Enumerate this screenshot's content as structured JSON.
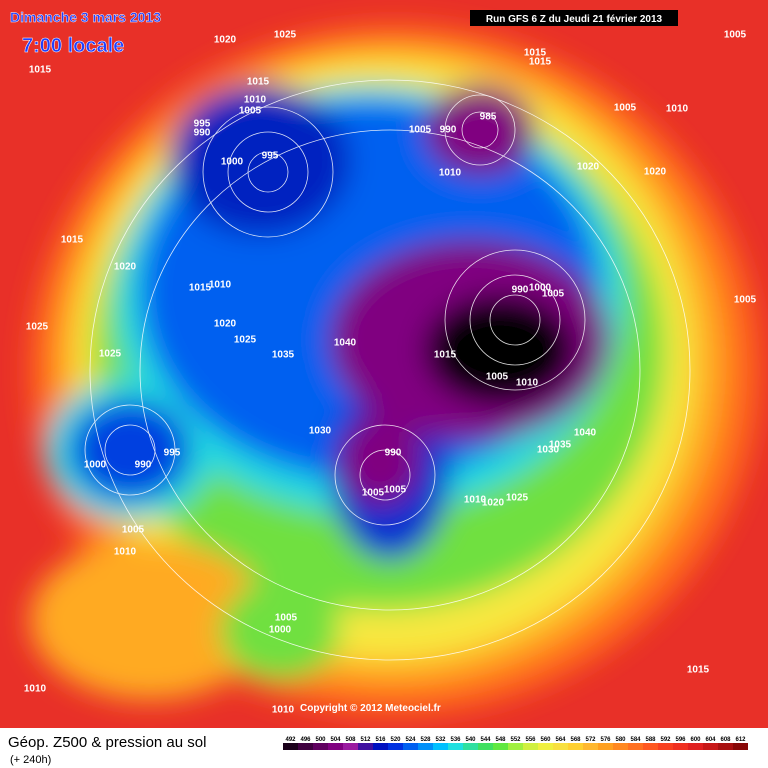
{
  "header": {
    "title": "Dimanche 3 mars 2013",
    "time": "7:00 locale",
    "run": "Run GFS 6 Z du Jeudi 21 février 2013"
  },
  "copyright": "Copyright © 2012 Meteociel.fr",
  "footer": {
    "title": "Géop. Z500 & pression au sol",
    "lead": "(+ 240h)"
  },
  "isobar_labels": [
    1020,
    1025,
    1015,
    1015,
    1015,
    1005,
    1015,
    1010,
    1005,
    995,
    990,
    985,
    1005,
    990,
    1000,
    995,
    1010,
    1020,
    1020,
    1005,
    1010,
    1015,
    1020,
    1015,
    1010,
    990,
    1000,
    1005,
    1005,
    1020,
    1025,
    1025,
    1035,
    1040,
    1015,
    1025,
    1005,
    1010,
    1030,
    1040,
    1035,
    1030,
    990,
    1000,
    990,
    995,
    1005,
    1005,
    1010,
    1020,
    1025,
    1005,
    1010,
    1005,
    1000,
    1015,
    1010,
    1010
  ],
  "scale": {
    "values": [
      492,
      496,
      500,
      504,
      508,
      512,
      516,
      520,
      524,
      528,
      532,
      536,
      540,
      544,
      548,
      552,
      556,
      560,
      564,
      568,
      572,
      576,
      580,
      584,
      588,
      592,
      596,
      600,
      604,
      608,
      612
    ],
    "colors": [
      "#1a001a",
      "#400040",
      "#600060",
      "#800080",
      "#9a1aa0",
      "#4010a0",
      "#0010c0",
      "#0030e0",
      "#0060f0",
      "#0090f8",
      "#00c0ff",
      "#20e0e0",
      "#30e0a0",
      "#40e060",
      "#60e840",
      "#a0f040",
      "#d0f040",
      "#f0f040",
      "#f8e040",
      "#ffd030",
      "#ffb830",
      "#ffa020",
      "#ff8820",
      "#ff7020",
      "#ff5820",
      "#f84020",
      "#f03020",
      "#e02020",
      "#c81818",
      "#a81010",
      "#880808"
    ]
  }
}
